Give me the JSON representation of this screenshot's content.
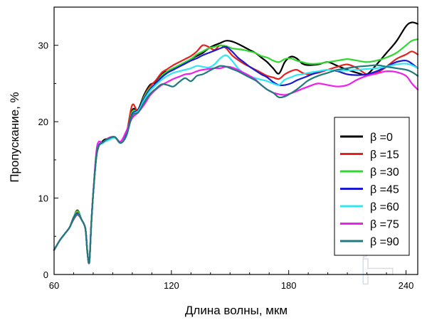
{
  "chart_data": {
    "type": "line",
    "title": "",
    "xlabel": "Длина волны, мкм",
    "ylabel": "Пропускание, %",
    "xlim": [
      60,
      246
    ],
    "ylim": [
      0,
      35
    ],
    "xticks": [
      60,
      120,
      180,
      240
    ],
    "yticks": [
      0,
      10,
      20,
      30
    ],
    "grid": false,
    "legend_position": "right",
    "watermark": "TYDEX",
    "series": [
      {
        "name": "β =0",
        "color": "#000000",
        "x": [
          60,
          63,
          66,
          68,
          70,
          72,
          74,
          76,
          77,
          78,
          79,
          80,
          82,
          85,
          88,
          91,
          94,
          97,
          100,
          103,
          106,
          109,
          112,
          115,
          118,
          121,
          124,
          127,
          130,
          133,
          136,
          139,
          142,
          145,
          148,
          151,
          154,
          157,
          160,
          163,
          166,
          169,
          172,
          175,
          178,
          181,
          184,
          187,
          190,
          195,
          200,
          205,
          210,
          215,
          220,
          225,
          230,
          235,
          240,
          243,
          246
        ],
        "y": [
          3.2,
          4.5,
          5.5,
          6.2,
          7.5,
          8.4,
          7.2,
          6.0,
          3.0,
          1.6,
          6.5,
          10.5,
          16.0,
          17.5,
          17.8,
          18.0,
          17.3,
          18.2,
          21.5,
          21.6,
          23.5,
          24.8,
          25.2,
          26.3,
          26.6,
          27.0,
          27.3,
          27.6,
          28.2,
          28.6,
          29.0,
          29.6,
          30.0,
          30.3,
          30.6,
          30.5,
          30.2,
          29.8,
          29.4,
          29.0,
          28.4,
          27.8,
          27.0,
          26.3,
          27.8,
          28.5,
          28.3,
          27.6,
          27.4,
          27.5,
          27.8,
          27.3,
          26.8,
          26.4,
          26.2,
          27.5,
          29.0,
          30.5,
          32.5,
          33.0,
          32.8
        ]
      },
      {
        "name": "β =15",
        "color": "#e4211c",
        "x": [
          60,
          63,
          66,
          68,
          70,
          72,
          74,
          76,
          77,
          78,
          79,
          80,
          82,
          85,
          88,
          91,
          94,
          97,
          100,
          103,
          106,
          109,
          112,
          115,
          118,
          121,
          124,
          127,
          130,
          133,
          136,
          139,
          142,
          145,
          148,
          151,
          154,
          157,
          160,
          163,
          166,
          169,
          172,
          175,
          178,
          181,
          184,
          187,
          190,
          195,
          200,
          205,
          210,
          215,
          220,
          225,
          230,
          235,
          240,
          243,
          246
        ],
        "y": [
          3.2,
          4.5,
          5.5,
          6.2,
          7.5,
          8.2,
          7.2,
          6.0,
          3.0,
          1.6,
          6.5,
          10.5,
          16.2,
          17.3,
          17.8,
          18.0,
          17.3,
          18.5,
          22.2,
          21.3,
          23.3,
          24.6,
          25.4,
          26.4,
          26.9,
          27.4,
          27.8,
          28.2,
          28.6,
          29.2,
          30.0,
          29.8,
          29.4,
          30.0,
          29.6,
          28.7,
          28.1,
          27.6,
          27.2,
          26.8,
          26.4,
          26.0,
          25.8,
          25.6,
          26.2,
          26.6,
          26.8,
          26.4,
          26.2,
          26.4,
          26.8,
          27.2,
          27.5,
          27.0,
          26.2,
          26.4,
          27.2,
          28.2,
          28.8,
          29.2,
          28.8
        ]
      },
      {
        "name": "β =30",
        "color": "#2fd82f",
        "x": [
          60,
          63,
          66,
          68,
          70,
          72,
          74,
          76,
          77,
          78,
          79,
          80,
          82,
          85,
          88,
          91,
          94,
          97,
          100,
          103,
          106,
          109,
          112,
          115,
          118,
          121,
          124,
          127,
          130,
          133,
          136,
          139,
          142,
          145,
          148,
          151,
          154,
          157,
          160,
          163,
          166,
          169,
          172,
          175,
          178,
          181,
          184,
          187,
          190,
          195,
          200,
          205,
          210,
          215,
          220,
          225,
          230,
          235,
          240,
          243,
          246
        ],
        "y": [
          3.2,
          4.5,
          5.5,
          6.2,
          7.5,
          8.3,
          7.2,
          6.0,
          3.0,
          1.6,
          6.5,
          10.5,
          16.2,
          17.3,
          17.8,
          18.0,
          17.3,
          18.3,
          21.3,
          21.4,
          23.2,
          24.4,
          25.0,
          26.0,
          26.6,
          27.0,
          27.4,
          27.8,
          28.2,
          28.8,
          29.2,
          29.6,
          29.8,
          30.0,
          29.9,
          29.6,
          29.5,
          29.4,
          29.2,
          29.0,
          28.6,
          28.4,
          28.0,
          27.8,
          28.2,
          28.3,
          28.0,
          27.8,
          27.6,
          27.6,
          27.8,
          28.0,
          28.2,
          28.0,
          27.8,
          28.0,
          28.4,
          29.0,
          30.0,
          30.6,
          30.8
        ]
      },
      {
        "name": "β =45",
        "color": "#1a1acf",
        "x": [
          60,
          63,
          66,
          68,
          70,
          72,
          74,
          76,
          77,
          78,
          79,
          80,
          82,
          85,
          88,
          91,
          94,
          97,
          100,
          103,
          106,
          109,
          112,
          115,
          118,
          121,
          124,
          127,
          130,
          133,
          136,
          139,
          142,
          145,
          148,
          151,
          154,
          157,
          160,
          163,
          166,
          169,
          172,
          175,
          178,
          181,
          184,
          187,
          190,
          195,
          200,
          205,
          210,
          215,
          220,
          225,
          230,
          235,
          240,
          243,
          246
        ],
        "y": [
          3.2,
          4.5,
          5.5,
          6.2,
          7.4,
          8.0,
          7.2,
          6.0,
          3.0,
          1.6,
          6.5,
          10.5,
          16.3,
          17.3,
          17.8,
          18.0,
          17.3,
          18.5,
          21.0,
          21.5,
          23.0,
          24.2,
          25.0,
          25.8,
          26.4,
          26.8,
          27.2,
          27.6,
          28.0,
          28.3,
          28.7,
          29.0,
          29.3,
          29.6,
          29.8,
          29.2,
          28.4,
          27.8,
          27.2,
          26.7,
          26.2,
          25.8,
          25.2,
          24.8,
          24.8,
          25.0,
          25.4,
          25.7,
          26.0,
          26.5,
          26.8,
          26.6,
          26.2,
          26.1,
          26.2,
          26.6,
          27.2,
          27.8,
          28.0,
          27.6,
          27.0
        ]
      },
      {
        "name": "β =60",
        "color": "#30e6f2",
        "x": [
          60,
          63,
          66,
          68,
          70,
          72,
          74,
          76,
          77,
          78,
          79,
          80,
          82,
          85,
          88,
          91,
          94,
          97,
          100,
          103,
          106,
          109,
          112,
          115,
          118,
          121,
          124,
          127,
          130,
          133,
          136,
          139,
          142,
          145,
          148,
          151,
          154,
          157,
          160,
          163,
          166,
          169,
          172,
          175,
          178,
          181,
          184,
          187,
          190,
          195,
          200,
          205,
          210,
          215,
          220,
          225,
          230,
          235,
          240,
          243,
          246
        ],
        "y": [
          3.2,
          4.5,
          5.5,
          6.2,
          7.3,
          7.9,
          7.2,
          6.0,
          3.0,
          1.6,
          6.5,
          10.5,
          16.2,
          17.2,
          17.6,
          17.9,
          17.3,
          18.2,
          20.8,
          21.4,
          22.8,
          24.0,
          24.8,
          25.5,
          26.0,
          26.4,
          26.6,
          26.8,
          27.0,
          27.3,
          27.2,
          27.1,
          27.5,
          28.3,
          28.7,
          28.0,
          27.0,
          26.4,
          26.0,
          25.7,
          25.5,
          25.3,
          25.0,
          24.8,
          25.5,
          25.8,
          26.1,
          26.2,
          26.4,
          26.6,
          26.8,
          26.7,
          26.7,
          26.8,
          26.9,
          27.0,
          27.2,
          27.5,
          27.6,
          27.4,
          27.0
        ]
      },
      {
        "name": "β  =75",
        "color": "#ee20ee",
        "x": [
          60,
          63,
          66,
          68,
          70,
          72,
          74,
          76,
          77,
          78,
          79,
          80,
          82,
          85,
          88,
          91,
          94,
          97,
          100,
          103,
          106,
          109,
          112,
          115,
          118,
          121,
          124,
          127,
          130,
          133,
          136,
          139,
          142,
          145,
          148,
          151,
          154,
          157,
          160,
          163,
          166,
          169,
          172,
          175,
          178,
          181,
          184,
          187,
          190,
          195,
          200,
          205,
          210,
          215,
          220,
          225,
          230,
          235,
          240,
          243,
          246
        ],
        "y": [
          3.2,
          4.5,
          5.5,
          6.2,
          7.2,
          7.8,
          7.2,
          6.0,
          3.0,
          1.6,
          6.5,
          10.5,
          16.8,
          17.3,
          17.9,
          18.0,
          17.4,
          18.8,
          20.5,
          21.2,
          22.2,
          23.4,
          24.2,
          24.8,
          25.2,
          25.6,
          25.9,
          26.2,
          26.3,
          26.6,
          26.8,
          26.9,
          27.0,
          27.0,
          27.2,
          27.1,
          26.8,
          26.4,
          26.0,
          25.5,
          24.8,
          24.2,
          23.8,
          23.6,
          23.5,
          23.7,
          24.0,
          24.3,
          24.6,
          25.0,
          24.8,
          24.6,
          24.8,
          25.5,
          26.0,
          26.3,
          26.6,
          26.5,
          26.0,
          25.0,
          24.2
        ]
      },
      {
        "name": "β  =90",
        "color": "#1f7b7b",
        "x": [
          60,
          63,
          66,
          68,
          70,
          72,
          74,
          76,
          77,
          78,
          79,
          80,
          82,
          85,
          88,
          91,
          94,
          97,
          100,
          103,
          106,
          109,
          112,
          115,
          118,
          121,
          124,
          127,
          130,
          133,
          136,
          139,
          142,
          145,
          148,
          151,
          154,
          157,
          160,
          163,
          166,
          169,
          172,
          175,
          178,
          181,
          184,
          187,
          190,
          195,
          200,
          205,
          210,
          215,
          220,
          225,
          230,
          235,
          240,
          243,
          246
        ],
        "y": [
          3.2,
          4.5,
          5.5,
          6.2,
          7.3,
          7.9,
          7.2,
          6.0,
          3.0,
          1.6,
          6.5,
          10.5,
          16.2,
          17.3,
          17.8,
          18.0,
          17.2,
          18.2,
          20.8,
          21.2,
          22.5,
          23.6,
          24.3,
          24.9,
          24.8,
          24.6,
          25.2,
          25.7,
          25.3,
          26.0,
          26.2,
          26.6,
          27.0,
          27.3,
          27.2,
          26.9,
          26.6,
          26.2,
          25.8,
          25.4,
          24.8,
          24.2,
          23.8,
          23.2,
          23.3,
          23.7,
          24.2,
          24.8,
          25.4,
          26.0,
          26.4,
          26.8,
          27.0,
          27.2,
          27.3,
          27.4,
          27.2,
          27.0,
          26.8,
          26.5,
          26.0
        ]
      }
    ]
  }
}
